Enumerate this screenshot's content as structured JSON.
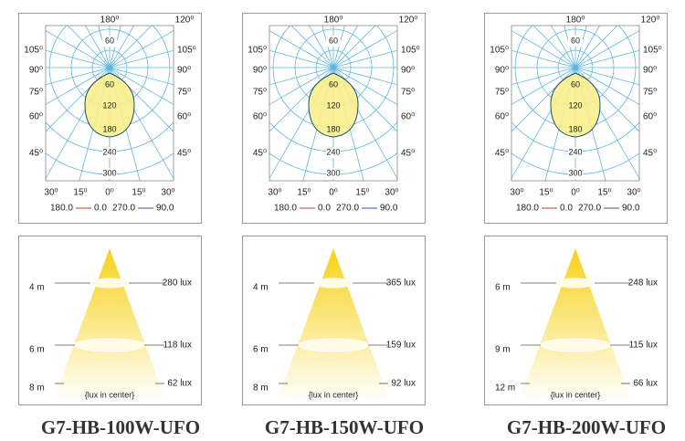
{
  "panels": [
    {
      "polar": {
        "top_labels": [
          "180⁰",
          "120⁰"
        ],
        "left_labels": [
          "105⁰",
          "90⁰",
          "75⁰",
          "60⁰",
          "45⁰"
        ],
        "right_labels": [
          "105⁰",
          "90⁰",
          "75⁰",
          "60⁰",
          "45⁰"
        ],
        "radial_labels": [
          "60",
          "60",
          "120",
          "180",
          "240",
          "300"
        ],
        "bottom_labels": [
          "30⁰",
          "15⁰",
          "0⁰",
          "15⁰",
          "30⁰"
        ],
        "legend": [
          "180.0",
          "0.0",
          "270.0",
          "90.0"
        ]
      },
      "cone": {
        "heights": [
          "4 m",
          "6 m",
          "8 m"
        ],
        "lux": [
          "280 lux",
          "118 lux",
          "62 lux"
        ],
        "note": "{lux in center}"
      },
      "name": "G7-HB-100W-UFO"
    },
    {
      "polar": {
        "top_labels": [
          "180⁰",
          "120⁰"
        ],
        "left_labels": [
          "105⁰",
          "90⁰",
          "75⁰",
          "60⁰",
          "45⁰"
        ],
        "right_labels": [
          "105⁰",
          "90⁰",
          "75⁰",
          "60⁰",
          "45⁰"
        ],
        "radial_labels": [
          "60",
          "60",
          "120",
          "180",
          "240",
          "300"
        ],
        "bottom_labels": [
          "30⁰",
          "15⁰",
          "0⁰",
          "15⁰",
          "30⁰"
        ],
        "legend": [
          "180.0",
          "0.0",
          "270.0",
          "90.0"
        ]
      },
      "cone": {
        "heights": [
          "4 m",
          "6 m",
          "8 m"
        ],
        "lux": [
          "365 lux",
          "159 lux",
          "92 lux"
        ],
        "note": "{lux in center}"
      },
      "name": "G7-HB-150W-UFO"
    },
    {
      "polar": {
        "top_labels": [
          "180⁰",
          "120⁰"
        ],
        "left_labels": [
          "105⁰",
          "90⁰",
          "75⁰",
          "60⁰",
          "45⁰"
        ],
        "right_labels": [
          "105⁰",
          "90⁰",
          "75⁰",
          "60⁰",
          "45⁰"
        ],
        "radial_labels": [
          "60",
          "60",
          "120",
          "180",
          "240",
          "300"
        ],
        "bottom_labels": [
          "30⁰",
          "15⁰",
          "0⁰",
          "15⁰",
          "30⁰"
        ],
        "legend": [
          "180.0",
          "0.0",
          "270.0",
          "90.0"
        ]
      },
      "cone": {
        "heights": [
          "6 m",
          "9 m",
          "12 m"
        ],
        "lux": [
          "248 lux",
          "115 lux",
          "66 lux"
        ],
        "note": "{lux in center}"
      },
      "name": "G7-HB-200W-UFO"
    }
  ]
}
